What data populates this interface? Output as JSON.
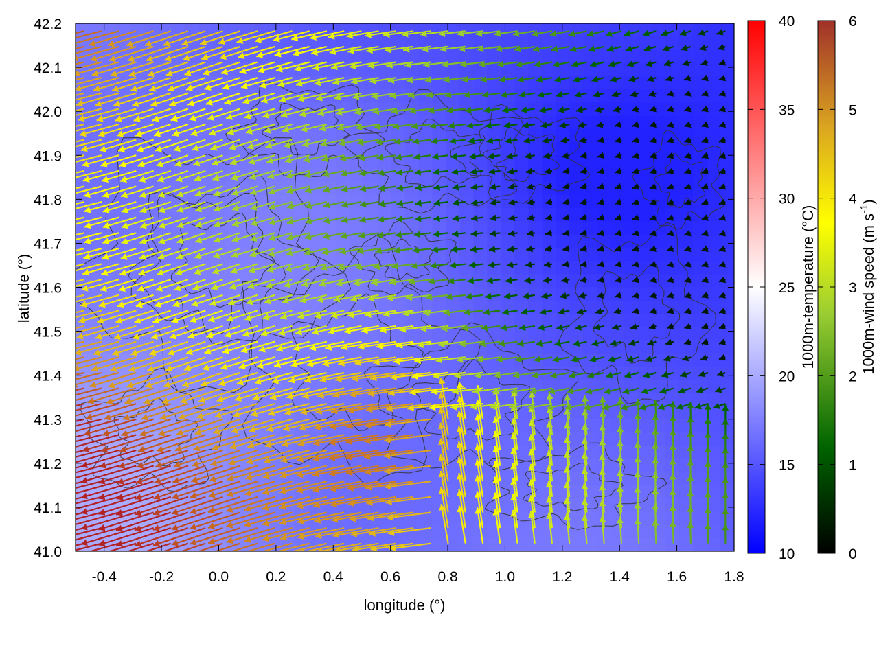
{
  "chart_data": {
    "type": "vector-field-heatmap",
    "xlabel": "longitude (°)",
    "ylabel": "latitude (°)",
    "xlim": [
      -0.5,
      1.8
    ],
    "ylim": [
      41.0,
      42.2
    ],
    "x_ticks": [
      "-0.4",
      "-0.2",
      "0.0",
      "0.2",
      "0.4",
      "0.6",
      "0.8",
      "1.0",
      "1.2",
      "1.4",
      "1.6",
      "1.8"
    ],
    "y_ticks": [
      "41.0",
      "41.1",
      "41.2",
      "41.3",
      "41.4",
      "41.5",
      "41.6",
      "41.7",
      "41.8",
      "41.9",
      "42.0",
      "42.1",
      "42.2"
    ],
    "temperature_colorbar": {
      "label": "1000m-temperature (°C)",
      "range": [
        10,
        40
      ],
      "ticks": [
        "10",
        "15",
        "20",
        "25",
        "30",
        "35",
        "40"
      ],
      "colors": [
        "#0000ff",
        "#ffffff",
        "#ff0000"
      ]
    },
    "wind_colorbar": {
      "label_main": "1000m-wind speed (m s",
      "label_sup": "-1",
      "label_end": ")",
      "range": [
        0,
        6
      ],
      "ticks": [
        "0",
        "1",
        "2",
        "3",
        "4",
        "5",
        "6"
      ],
      "colors": [
        "#000000",
        "#006400",
        "#9acd32",
        "#ffff00",
        "#daa520",
        "#b22222"
      ]
    },
    "temperature_field_range": [
      12,
      20
    ],
    "wind_field_range": [
      0.3,
      6
    ],
    "contours": "terrain elevation, black, unlabeled"
  }
}
